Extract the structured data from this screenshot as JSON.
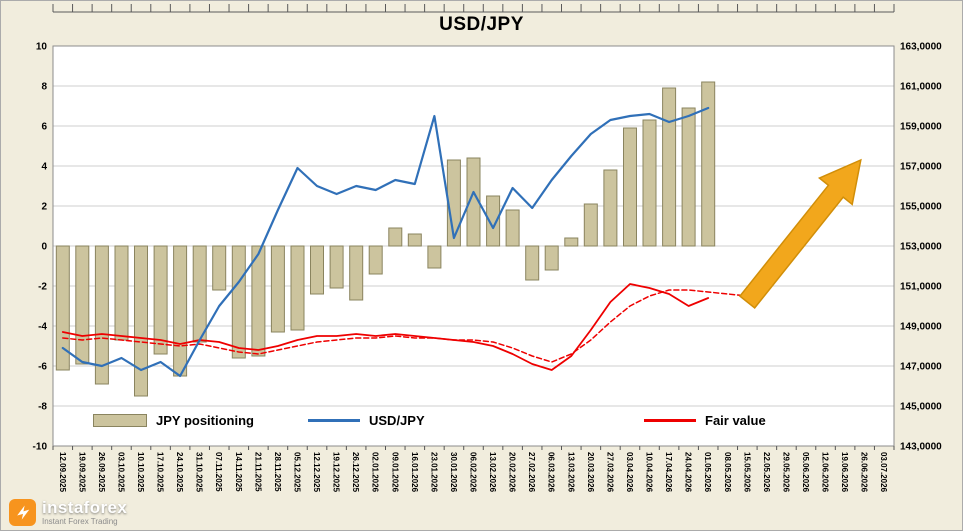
{
  "watermark": {
    "brand": "instaforex",
    "tagline": "Instant Forex Trading"
  },
  "chart_data": {
    "type": "combo-bar-line",
    "title": "USD/JPY",
    "grid": "horizontal",
    "legend_position": "bottom-inside",
    "legend": [
      "JPY positioning",
      "USD/JPY",
      "Fair value"
    ],
    "categories": [
      "12.09.2025",
      "19.09.2025",
      "26.09.2025",
      "03.10.2025",
      "10.10.2025",
      "17.10.2025",
      "24.10.2025",
      "31.10.2025",
      "07.11.2025",
      "14.11.2025",
      "21.11.2025",
      "28.11.2025",
      "05.12.2025",
      "12.12.2025",
      "19.12.2025",
      "26.12.2025",
      "02.01.2026",
      "09.01.2026",
      "16.01.2026",
      "23.01.2026",
      "30.01.2026",
      "06.02.2026",
      "13.02.2026",
      "20.02.2026",
      "27.02.2026",
      "06.03.2026",
      "13.03.2026",
      "20.03.2026",
      "27.03.2026",
      "03.04.2026",
      "10.04.2026",
      "17.04.2026",
      "24.04.2026",
      "01.05.2026",
      "08.05.2026",
      "15.05.2026",
      "22.05.2026",
      "29.05.2026",
      "05.06.2026",
      "12.06.2026",
      "19.06.2026",
      "26.06.2026",
      "03.07.2026"
    ],
    "left_axis": {
      "min": -10,
      "max": 10,
      "step": 2,
      "ticks": [
        "10",
        "8",
        "6",
        "4",
        "2",
        "0",
        "-2",
        "-4",
        "-6",
        "-8",
        "-10"
      ]
    },
    "right_axis": {
      "min": 143,
      "max": 163,
      "step": 2,
      "ticks": [
        "163,0000",
        "161,0000",
        "159,0000",
        "157,0000",
        "155,0000",
        "153,0000",
        "151,0000",
        "149,0000",
        "147,0000",
        "145,0000",
        "143,0000"
      ]
    },
    "series": [
      {
        "name": "JPY positioning",
        "type": "bar",
        "axis": "left",
        "color": "#CCC49E",
        "border_color": "#8A845F",
        "values": [
          -6.2,
          -5.9,
          -6.9,
          -4.7,
          -7.5,
          -5.4,
          -6.5,
          -4.8,
          -2.2,
          -5.6,
          -5.5,
          -4.3,
          -4.2,
          -2.4,
          -2.1,
          -2.7,
          -1.4,
          0.9,
          0.6,
          -1.1,
          4.3,
          4.4,
          2.5,
          1.8,
          -1.7,
          -1.2,
          0.4,
          2.1,
          3.8,
          5.9,
          6.3,
          7.9,
          6.9,
          8.2
        ]
      },
      {
        "name": "USD/JPY",
        "type": "line",
        "axis": "right",
        "color": "#3070B8",
        "values": [
          147.9,
          147.2,
          147.0,
          147.4,
          146.8,
          147.2,
          146.5,
          148.3,
          150.0,
          151.2,
          152.6,
          154.8,
          156.9,
          156.0,
          155.6,
          156.0,
          155.8,
          156.3,
          156.1,
          159.5,
          153.4,
          155.7,
          153.9,
          155.9,
          154.9,
          156.3,
          157.5,
          158.6,
          159.3,
          159.5,
          159.6,
          159.2,
          159.5,
          159.9
        ]
      },
      {
        "name": "Fair value",
        "type": "line",
        "axis": "right",
        "color": "#EE0000",
        "values": [
          148.7,
          148.5,
          148.6,
          148.5,
          148.4,
          148.3,
          148.1,
          148.3,
          148.2,
          147.9,
          147.8,
          148.0,
          148.3,
          148.5,
          148.5,
          148.6,
          148.5,
          148.6,
          148.5,
          148.4,
          148.3,
          148.2,
          148.0,
          147.6,
          147.1,
          146.8,
          147.5,
          148.8,
          150.2,
          151.1,
          150.9,
          150.6,
          150.0,
          150.4
        ]
      },
      {
        "name": "Fair value (forecast, dashed)",
        "type": "line",
        "dash": true,
        "axis": "right",
        "color": "#EE0000",
        "values": [
          148.4,
          148.3,
          148.4,
          148.3,
          148.2,
          148.1,
          148.0,
          148.1,
          147.9,
          147.7,
          147.6,
          147.8,
          148.0,
          148.2,
          148.3,
          148.4,
          148.4,
          148.5,
          148.4,
          148.4,
          148.3,
          148.3,
          148.2,
          147.9,
          147.5,
          147.2,
          147.6,
          148.3,
          149.2,
          150.0,
          150.5,
          150.8,
          150.8,
          150.7,
          150.6,
          150.5
        ]
      }
    ],
    "annotation_arrow": {
      "color": "#F2A71C",
      "border": "#D18E08",
      "from_slot": 35,
      "from_value": 150.2,
      "to_slot": 40.8,
      "to_value": 157.3
    }
  }
}
